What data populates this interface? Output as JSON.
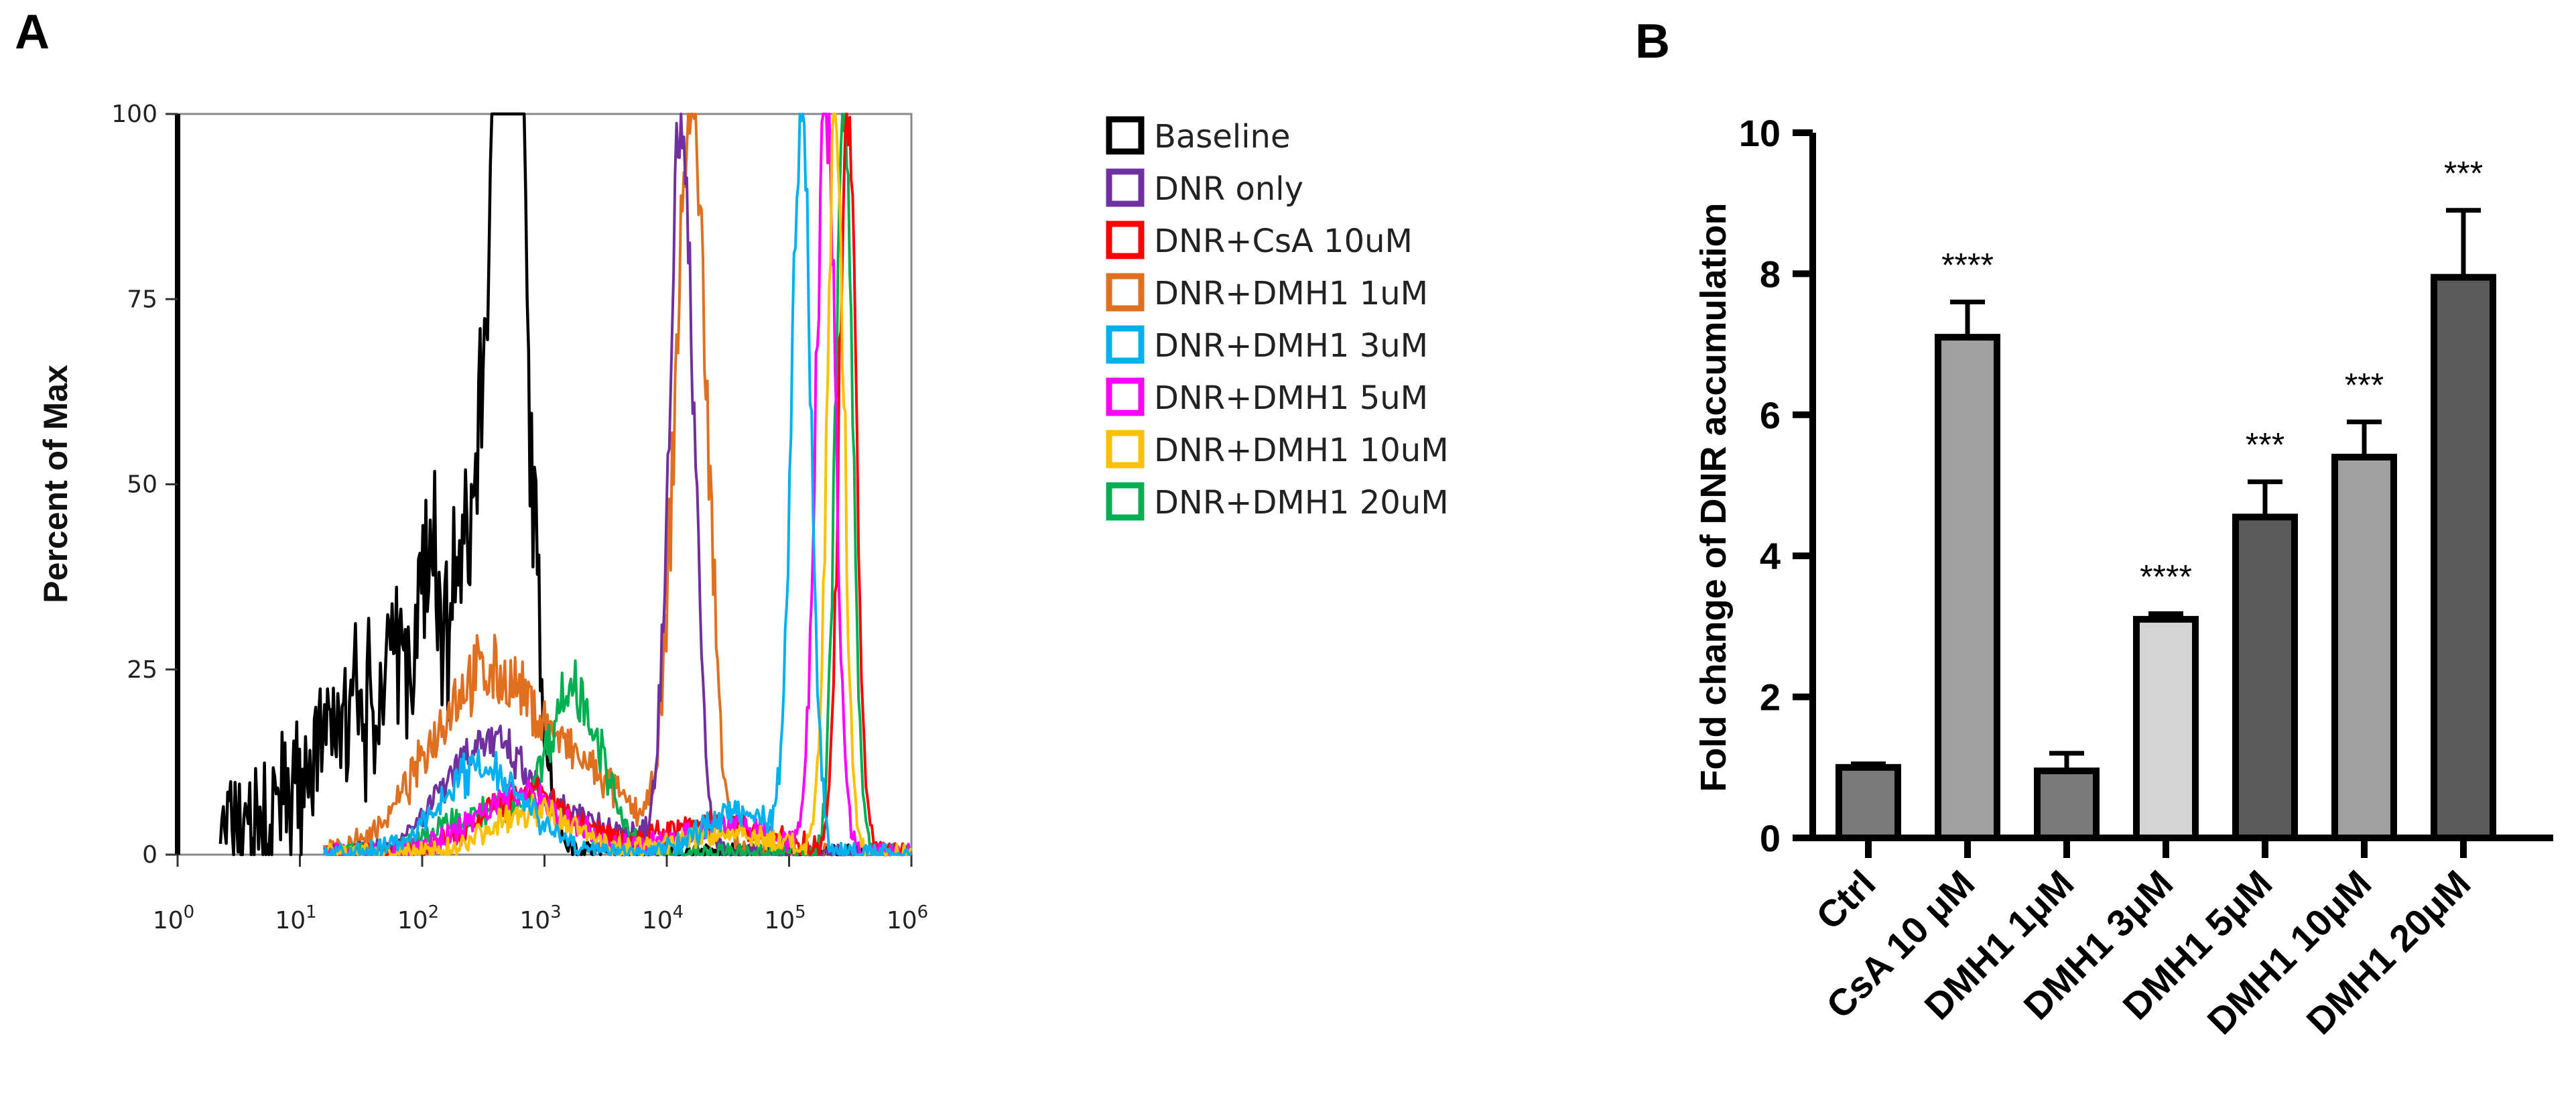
{
  "figure": {
    "panel_a_label": "A",
    "panel_b_label": "B"
  },
  "chart_data": [
    {
      "type": "line",
      "panel": "A",
      "title": "",
      "xlabel": "",
      "ylabel": "Percent of Max",
      "xscale": "log",
      "xlim": [
        1,
        1000000
      ],
      "ylim": [
        0,
        100
      ],
      "xtick_labels": [
        {
          "base": "10",
          "exp": "0"
        },
        {
          "base": "10",
          "exp": "1"
        },
        {
          "base": "10",
          "exp": "2"
        },
        {
          "base": "10",
          "exp": "3"
        },
        {
          "base": "10",
          "exp": "4"
        },
        {
          "base": "10",
          "exp": "5"
        },
        {
          "base": "10",
          "exp": "6"
        }
      ],
      "yticks": [
        0,
        25,
        50,
        75,
        100
      ],
      "legend_placement": "right",
      "series": [
        {
          "name": "Baseline",
          "color": "#000000",
          "peak_log10": 2.72,
          "peak_value": 100
        },
        {
          "name": "DNR only",
          "color": "#7030a0",
          "peak_log10": 4.12,
          "peak_value": 100
        },
        {
          "name": "DNR+CsA 10uM",
          "color": "#ff0000",
          "peak_log10": 5.48,
          "peak_value": 100
        },
        {
          "name": "DNR+DMH1 1uM",
          "color": "#e07020",
          "peak_log10": 4.2,
          "peak_value": 100
        },
        {
          "name": "DNR+DMH1 3uM",
          "color": "#00b0f0",
          "peak_log10": 5.1,
          "peak_value": 100
        },
        {
          "name": "DNR+DMH1 5uM",
          "color": "#ff00ff",
          "peak_log10": 5.3,
          "peak_value": 100
        },
        {
          "name": "DNR+DMH1 10uM",
          "color": "#ffc000",
          "peak_log10": 5.38,
          "peak_value": 100
        },
        {
          "name": "DNR+DMH1 20uM",
          "color": "#00b050",
          "peak_log10": 5.45,
          "peak_value": 100
        }
      ]
    },
    {
      "type": "bar",
      "panel": "B",
      "title": "",
      "xlabel": "",
      "ylabel": "Fold change of DNR accumulation",
      "ylim": [
        0,
        10
      ],
      "yticks": [
        0,
        2,
        4,
        6,
        8,
        10
      ],
      "categories": [
        "Ctrl",
        "CsA 10 μM",
        "DMH1 1μM",
        "DMH1 3μM",
        "DMH1 5μM",
        "DMH1 10μM",
        "DMH1 20μM"
      ],
      "values": [
        1.0,
        7.1,
        0.95,
        3.1,
        4.55,
        5.4,
        7.95
      ],
      "errors": [
        0.05,
        0.5,
        0.25,
        0.08,
        0.5,
        0.5,
        0.95
      ],
      "significance": [
        "",
        "****",
        "",
        "****",
        "***",
        "***",
        "***"
      ],
      "bar_colors": [
        "#7a7a7a",
        "#a0a0a0",
        "#7a7a7a",
        "#d4d4d4",
        "#5a5a5a",
        "#a0a0a0",
        "#5a5a5a"
      ]
    }
  ]
}
